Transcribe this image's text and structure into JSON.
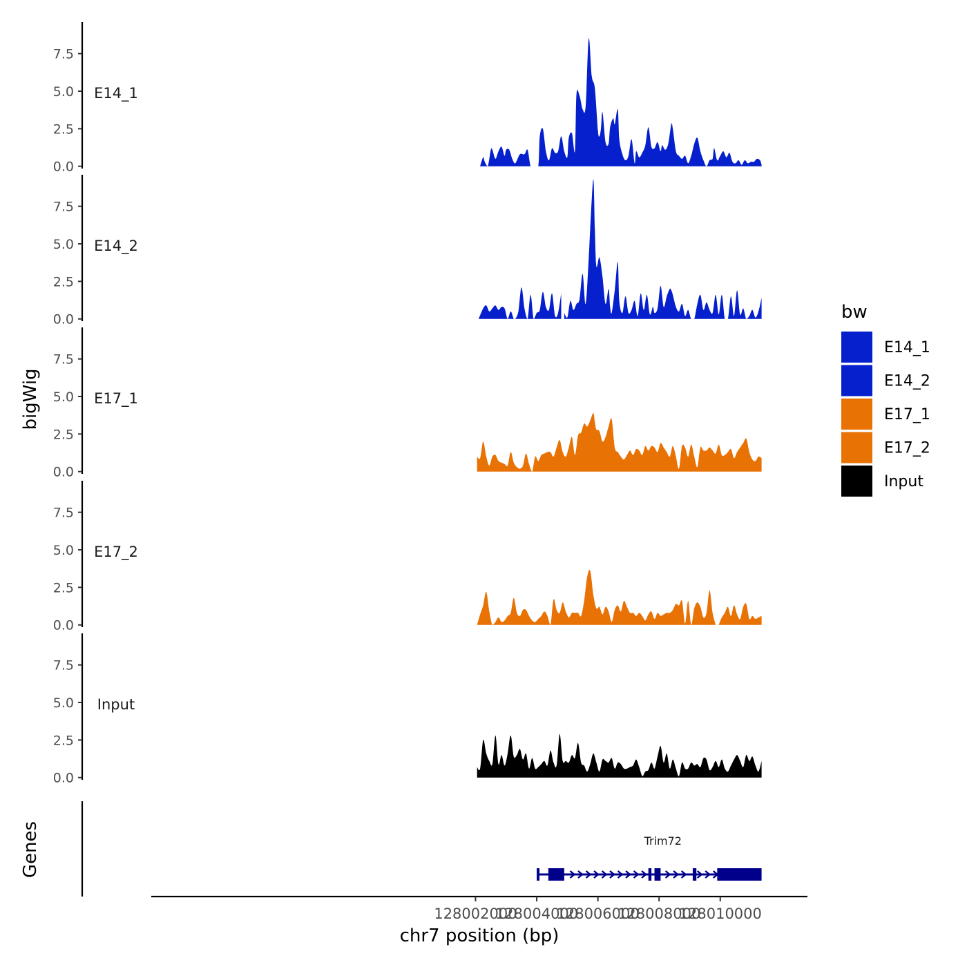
{
  "chart_data": {
    "type": "area",
    "title": "",
    "xlabel": "chr7 position (bp)",
    "ylabel": "bigWig",
    "genes_label": "Genes",
    "xlim": [
      127991400,
      128012850
    ],
    "x_ticks": [
      128002000,
      128004000,
      128006000,
      128008000,
      128010000
    ],
    "x_tick_labels": [
      "128002000",
      "128004000",
      "128006000",
      "128008000",
      "128010000"
    ],
    "ylim": [
      -0.15,
      9.6
    ],
    "y_ticks": [
      0.0,
      2.5,
      5.0,
      7.5
    ],
    "y_tick_labels": [
      "0.0",
      "2.5",
      "5.0",
      "7.5"
    ],
    "legend": {
      "title": "bw",
      "position": "right",
      "entries": [
        {
          "label": "E14_1",
          "color": "#0520CC"
        },
        {
          "label": "E14_2",
          "color": "#0520CC"
        },
        {
          "label": "E17_1",
          "color": "#E87204"
        },
        {
          "label": "E17_2",
          "color": "#E87204"
        },
        {
          "label": "Input",
          "color": "#000000"
        }
      ]
    },
    "tracks": [
      {
        "name": "E14_1",
        "color": "#0520CC",
        "x": [
          128002150,
          128002250,
          128002300,
          128002400,
          128002500,
          128002550,
          128002650,
          128002750,
          128002850,
          128002950,
          128003000,
          128003100,
          128003200,
          128003300,
          128003450,
          128003600,
          128003700,
          128003800,
          128003900,
          128004050,
          128004100,
          128004200,
          128004300,
          128004400,
          128004500,
          128004600,
          128004700,
          128004800,
          128004900,
          128005000,
          128005050,
          128005150,
          128005250,
          128005300,
          128005400,
          128005500,
          128005600,
          128005700,
          128005800,
          128005900,
          128006000,
          128006050,
          128006100,
          128006150,
          128006250,
          128006350,
          128006400,
          128006500,
          128006550,
          128006650,
          128006700,
          128006800,
          128006900,
          128007000,
          128007100,
          128007200,
          128007250,
          128007350,
          128007450,
          128007550,
          128007650,
          128007750,
          128007850,
          128007950,
          128008050,
          128008100,
          128008200,
          128008300,
          128008400,
          128008450,
          128008550,
          128008650,
          128008750,
          128008850,
          128008950,
          128009050,
          128009150,
          128009250,
          128009350,
          128009450,
          128009550,
          128009650,
          128009750,
          128009800,
          128009900,
          128010000,
          128010100,
          128010200,
          128010300,
          128010400,
          128010500,
          128010600,
          128010700,
          128010800,
          128010900,
          128011000,
          128011100,
          128011200,
          128011300,
          128011350
        ],
        "y": [
          0.0,
          0.6,
          0.3,
          0.0,
          1.1,
          1.1,
          0.5,
          1.0,
          1.3,
          0.7,
          1.1,
          1.1,
          0.5,
          0.2,
          0.8,
          0.8,
          1.1,
          0.0,
          0.0,
          0.0,
          2.0,
          2.5,
          1.0,
          0.4,
          1.2,
          0.9,
          1.0,
          2.0,
          1.0,
          0.6,
          1.9,
          2.2,
          1.0,
          4.8,
          4.7,
          3.8,
          4.0,
          8.5,
          6.0,
          5.2,
          2.4,
          2.0,
          2.5,
          3.6,
          1.6,
          1.5,
          2.6,
          3.2,
          2.8,
          3.8,
          1.8,
          0.8,
          0.4,
          0.7,
          1.8,
          0.2,
          1.0,
          0.6,
          0.9,
          1.4,
          2.6,
          1.3,
          1.2,
          1.6,
          1.0,
          1.4,
          1.1,
          1.5,
          2.8,
          2.5,
          1.0,
          0.7,
          0.5,
          0.7,
          0.2,
          0.7,
          1.5,
          1.9,
          1.0,
          0.4,
          0.0,
          0.4,
          0.5,
          1.2,
          0.4,
          0.7,
          1.0,
          0.6,
          0.9,
          0.3,
          0.2,
          0.4,
          0.1,
          0.4,
          0.2,
          0.3,
          0.3,
          0.5,
          0.4,
          0.1
        ]
      },
      {
        "name": "E14_2",
        "color": "#0520CC",
        "x": [
          128002100,
          128002250,
          128002350,
          128002450,
          128002550,
          128002650,
          128002750,
          128002850,
          128002950,
          128003050,
          128003150,
          128003250,
          128003300,
          128003400,
          128003500,
          128003600,
          128003700,
          128003800,
          128003900,
          128004000,
          128004100,
          128004200,
          128004300,
          128004400,
          128004500,
          128004600,
          128004700,
          128004800,
          128004900,
          128005000,
          128005100,
          128005200,
          128005300,
          128005400,
          128005500,
          128005600,
          128005700,
          128005750,
          128005850,
          128005900,
          128005950,
          128006050,
          128006150,
          128006250,
          128006350,
          128006400,
          128006450,
          128006550,
          128006650,
          128006700,
          128006800,
          128006900,
          128007000,
          128007100,
          128007200,
          128007300,
          128007400,
          128007500,
          128007600,
          128007700,
          128007800,
          128007850,
          128007950,
          128008050,
          128008150,
          128008250,
          128008350,
          128008400,
          128008450,
          128008550,
          128008650,
          128008750,
          128008850,
          128008950,
          128009050,
          128009150,
          128009250,
          128009350,
          128009450,
          128009550,
          128009650,
          128009750,
          128009850,
          128009950,
          128010050,
          128010150,
          128010250,
          128010350,
          128010450,
          128010550,
          128010650,
          128010750,
          128010850,
          128010950,
          128011050,
          128011150,
          128011250,
          128011350
        ],
        "y": [
          0.0,
          0.7,
          0.9,
          0.5,
          0.7,
          0.9,
          0.6,
          0.8,
          0.7,
          0.0,
          0.5,
          0.0,
          0.0,
          0.5,
          2.1,
          0.7,
          0.0,
          1.6,
          0.0,
          0.4,
          0.6,
          1.8,
          0.8,
          0.6,
          1.7,
          0.2,
          0.4,
          1.7,
          0.4,
          0.1,
          1.2,
          0.6,
          1.0,
          1.3,
          3.0,
          1.0,
          4.0,
          6.0,
          9.3,
          6.0,
          3.5,
          4.1,
          2.8,
          1.0,
          2.0,
          0.8,
          0.4,
          1.9,
          3.8,
          1.2,
          0.4,
          1.5,
          0.4,
          0.6,
          1.2,
          0.2,
          1.7,
          0.6,
          1.6,
          0.3,
          0.8,
          0.4,
          0.7,
          2.2,
          0.8,
          1.5,
          2.0,
          1.9,
          1.6,
          0.8,
          0.5,
          1.0,
          0.2,
          0.6,
          0.0,
          0.0,
          1.0,
          1.6,
          0.6,
          1.1,
          0.6,
          0.4,
          1.6,
          0.3,
          1.6,
          0.0,
          0.0,
          1.5,
          0.2,
          1.9,
          0.3,
          0.7,
          0.0,
          0.2,
          0.6,
          0.1,
          0.5,
          1.4
        ],
        "gaps_after_index": [
          27
        ]
      },
      {
        "name": "E17_1",
        "color": "#E87204",
        "x": [
          128002050,
          128002150,
          128002250,
          128002350,
          128002450,
          128002550,
          128002650,
          128002750,
          128002850,
          128002950,
          128003050,
          128003150,
          128003250,
          128003350,
          128003450,
          128003550,
          128003650,
          128003750,
          128003850,
          128003950,
          128004050,
          128004150,
          128004250,
          128004350,
          128004450,
          128004550,
          128004650,
          128004750,
          128004850,
          128004950,
          128005050,
          128005150,
          128005250,
          128005350,
          128005450,
          128005550,
          128005650,
          128005750,
          128005850,
          128005900,
          128005950,
          128006050,
          128006150,
          128006250,
          128006350,
          128006450,
          128006550,
          128006650,
          128006750,
          128006850,
          128006950,
          128007050,
          128007150,
          128007250,
          128007350,
          128007450,
          128007550,
          128007650,
          128007750,
          128007850,
          128007950,
          128008050,
          128008150,
          128008250,
          128008350,
          128008450,
          128008550,
          128008650,
          128008750,
          128008850,
          128008950,
          128009050,
          128009150,
          128009250,
          128009350,
          128009450,
          128009550,
          128009650,
          128009750,
          128009850,
          128009950,
          128010050,
          128010150,
          128010250,
          128010350,
          128010450,
          128010550,
          128010650,
          128010750,
          128010850,
          128010950,
          128011050,
          128011150,
          128011250,
          128011350
        ],
        "y": [
          1.0,
          0.9,
          2.0,
          1.0,
          0.4,
          1.0,
          1.1,
          0.7,
          0.6,
          0.5,
          0.4,
          1.3,
          0.6,
          0.3,
          0.2,
          0.4,
          1.2,
          0.5,
          0.0,
          1.0,
          0.7,
          1.1,
          1.2,
          1.3,
          1.3,
          1.0,
          1.6,
          2.1,
          1.3,
          1.0,
          1.6,
          2.3,
          1.1,
          2.4,
          2.6,
          3.2,
          3.0,
          3.4,
          3.9,
          3.3,
          2.8,
          2.7,
          2.0,
          2.3,
          3.0,
          3.5,
          1.6,
          1.3,
          1.0,
          0.8,
          1.1,
          1.4,
          1.1,
          1.5,
          1.4,
          1.1,
          1.7,
          1.4,
          1.7,
          1.6,
          1.3,
          1.9,
          1.6,
          1.3,
          1.0,
          1.7,
          1.0,
          0.2,
          1.7,
          1.6,
          1.0,
          1.8,
          1.0,
          0.3,
          1.6,
          1.4,
          1.4,
          1.6,
          1.4,
          1.2,
          1.8,
          1.1,
          1.1,
          1.3,
          1.5,
          0.9,
          1.3,
          1.6,
          1.9,
          2.2,
          1.3,
          0.8,
          0.7,
          1.0,
          0.9
        ]
      },
      {
        "name": "E17_2",
        "color": "#E87204",
        "x": [
          128002050,
          128002150,
          128002250,
          128002350,
          128002450,
          128002550,
          128002650,
          128002750,
          128002850,
          128002950,
          128003050,
          128003150,
          128003250,
          128003350,
          128003450,
          128003550,
          128003650,
          128003750,
          128003850,
          128003950,
          128004050,
          128004150,
          128004250,
          128004350,
          128004450,
          128004550,
          128004650,
          128004750,
          128004850,
          128004950,
          128005050,
          128005150,
          128005250,
          128005350,
          128005450,
          128005550,
          128005650,
          128005750,
          128005850,
          128005950,
          128006050,
          128006150,
          128006250,
          128006350,
          128006450,
          128006550,
          128006650,
          128006750,
          128006850,
          128006950,
          128007050,
          128007150,
          128007250,
          128007350,
          128007450,
          128007550,
          128007650,
          128007750,
          128007850,
          128007950,
          128008050,
          128008150,
          128008250,
          128008350,
          128008450,
          128008550,
          128008650,
          128008750,
          128008850,
          128008950,
          128009050,
          128009150,
          128009250,
          128009350,
          128009450,
          128009550,
          128009650,
          128009750,
          128009850,
          128009950,
          128010050,
          128010150,
          128010250,
          128010350,
          128010450,
          128010550,
          128010650,
          128010750,
          128010850,
          128010950,
          128011050,
          128011150,
          128011250,
          128011350
        ],
        "y": [
          0.0,
          0.7,
          1.3,
          2.2,
          0.9,
          0.0,
          0.2,
          0.5,
          0.2,
          0.3,
          0.6,
          0.8,
          1.8,
          0.8,
          0.6,
          1.0,
          1.0,
          0.6,
          0.3,
          0.2,
          0.4,
          0.6,
          0.9,
          0.6,
          0.0,
          1.7,
          1.0,
          0.8,
          1.5,
          0.9,
          0.5,
          0.8,
          0.8,
          0.8,
          0.6,
          1.6,
          3.2,
          3.6,
          2.0,
          1.1,
          1.2,
          0.7,
          1.2,
          0.9,
          0.2,
          1.0,
          1.3,
          0.9,
          1.6,
          1.2,
          0.8,
          0.8,
          0.6,
          0.8,
          0.6,
          0.3,
          0.7,
          0.9,
          0.4,
          0.8,
          0.6,
          0.7,
          0.8,
          0.8,
          1.0,
          1.4,
          1.3,
          1.6,
          0.1,
          1.6,
          0.0,
          1.1,
          1.5,
          1.2,
          0.5,
          0.8,
          2.3,
          0.8,
          0.0,
          0.0,
          0.5,
          0.8,
          1.2,
          0.6,
          1.3,
          0.7,
          0.4,
          1.2,
          1.4,
          0.4,
          0.6,
          0.4,
          0.5,
          0.6
        ],
        "gaps_after_index": [
          78
        ]
      },
      {
        "name": "Input",
        "color": "#000000",
        "x": [
          128002050,
          128002150,
          128002250,
          128002350,
          128002450,
          128002550,
          128002650,
          128002750,
          128002850,
          128002950,
          128003050,
          128003150,
          128003250,
          128003350,
          128003450,
          128003550,
          128003650,
          128003750,
          128003850,
          128003950,
          128004050,
          128004150,
          128004250,
          128004350,
          128004450,
          128004550,
          128004650,
          128004750,
          128004850,
          128004950,
          128005050,
          128005150,
          128005250,
          128005350,
          128005450,
          128005550,
          128005650,
          128005750,
          128005850,
          128005950,
          128006050,
          128006150,
          128006250,
          128006350,
          128006450,
          128006550,
          128006650,
          128006750,
          128006850,
          128006950,
          128007050,
          128007150,
          128007250,
          128007350,
          128007450,
          128007550,
          128007650,
          128007750,
          128007850,
          128007950,
          128008050,
          128008150,
          128008250,
          128008350,
          128008450,
          128008550,
          128008650,
          128008750,
          128008850,
          128008950,
          128009050,
          128009150,
          128009250,
          128009350,
          128009450,
          128009550,
          128009650,
          128009750,
          128009850,
          128009950,
          128010050,
          128010150,
          128010250,
          128010350,
          128010450,
          128010550,
          128010650,
          128010750,
          128010850,
          128010950,
          128011050,
          128011150,
          128011250,
          128011350
        ],
        "y": [
          0.7,
          0.6,
          2.5,
          1.6,
          1.1,
          0.9,
          2.8,
          0.9,
          1.5,
          0.8,
          1.6,
          2.8,
          1.4,
          1.5,
          1.9,
          1.2,
          1.6,
          0.6,
          1.3,
          0.6,
          0.7,
          0.9,
          1.1,
          0.8,
          1.8,
          1.0,
          0.8,
          2.9,
          1.1,
          1.1,
          1.0,
          1.5,
          1.3,
          2.3,
          1.0,
          0.8,
          0.4,
          0.9,
          1.6,
          1.0,
          0.4,
          1.2,
          1.1,
          1.0,
          1.3,
          0.6,
          1.0,
          0.9,
          0.6,
          0.6,
          0.7,
          0.8,
          1.2,
          0.7,
          0.1,
          0.4,
          0.5,
          1.0,
          0.6,
          1.4,
          2.1,
          1.0,
          1.6,
          0.6,
          1.2,
          0.6,
          0.1,
          1.0,
          0.6,
          0.6,
          1.0,
          0.8,
          0.9,
          0.7,
          1.3,
          1.2,
          0.5,
          0.7,
          1.1,
          0.7,
          1.2,
          0.6,
          0.4,
          0.8,
          1.2,
          1.5,
          1.1,
          0.7,
          1.5,
          1.1,
          1.4,
          0.8,
          0.4,
          1.1
        ]
      }
    ],
    "gene_track": {
      "name": "Trim72",
      "color": "#00008B",
      "start": 128004000,
      "end": 128011350,
      "strand": "+",
      "exons": [
        [
          128004000,
          128004080
        ],
        [
          128004380,
          128004900
        ],
        [
          128007650,
          128007750
        ],
        [
          128007850,
          128008050
        ],
        [
          128009100,
          128009220
        ],
        [
          128009900,
          128011350
        ]
      ]
    }
  }
}
